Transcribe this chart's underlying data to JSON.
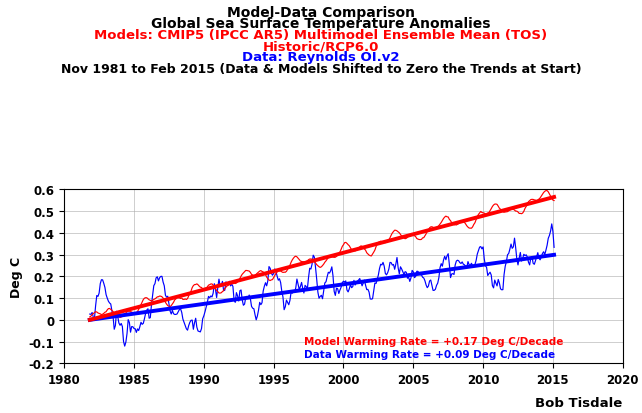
{
  "title_line1": "Model-Data Comparison",
  "title_line2": "Global Sea Surface Temperature Anomalies",
  "title_line3": "Models: CMIP5 (IPCC AR5) Multimodel Ensemble Mean (TOS)",
  "title_line4": "Historic/RCP6.0",
  "title_line5": "Data: Reynolds OI.v2",
  "title_line6": "Nov 1981 to Feb 2015 (Data & Models Shifted to Zero the Trends at Start)",
  "ylabel": "Deg C",
  "xlabel_ticks": [
    1980,
    1985,
    1990,
    1995,
    2000,
    2005,
    2010,
    2015,
    2020
  ],
  "ylim": [
    -0.2,
    0.6
  ],
  "xlim": [
    1980,
    2020
  ],
  "model_warming_rate": 0.17,
  "data_warming_rate": 0.09,
  "start_year": 1981.833,
  "end_year": 2015.083,
  "color_model": "#FF0000",
  "color_data": "#0000FF",
  "annotation_model": "Model Warming Rate = +0.17 Deg C/Decade",
  "annotation_data": "Data Warming Rate = +0.09 Deg C/Decade",
  "watermark": "Bob Tisdale",
  "background_color": "#FFFFFF",
  "grid_color": "#AAAAAA"
}
